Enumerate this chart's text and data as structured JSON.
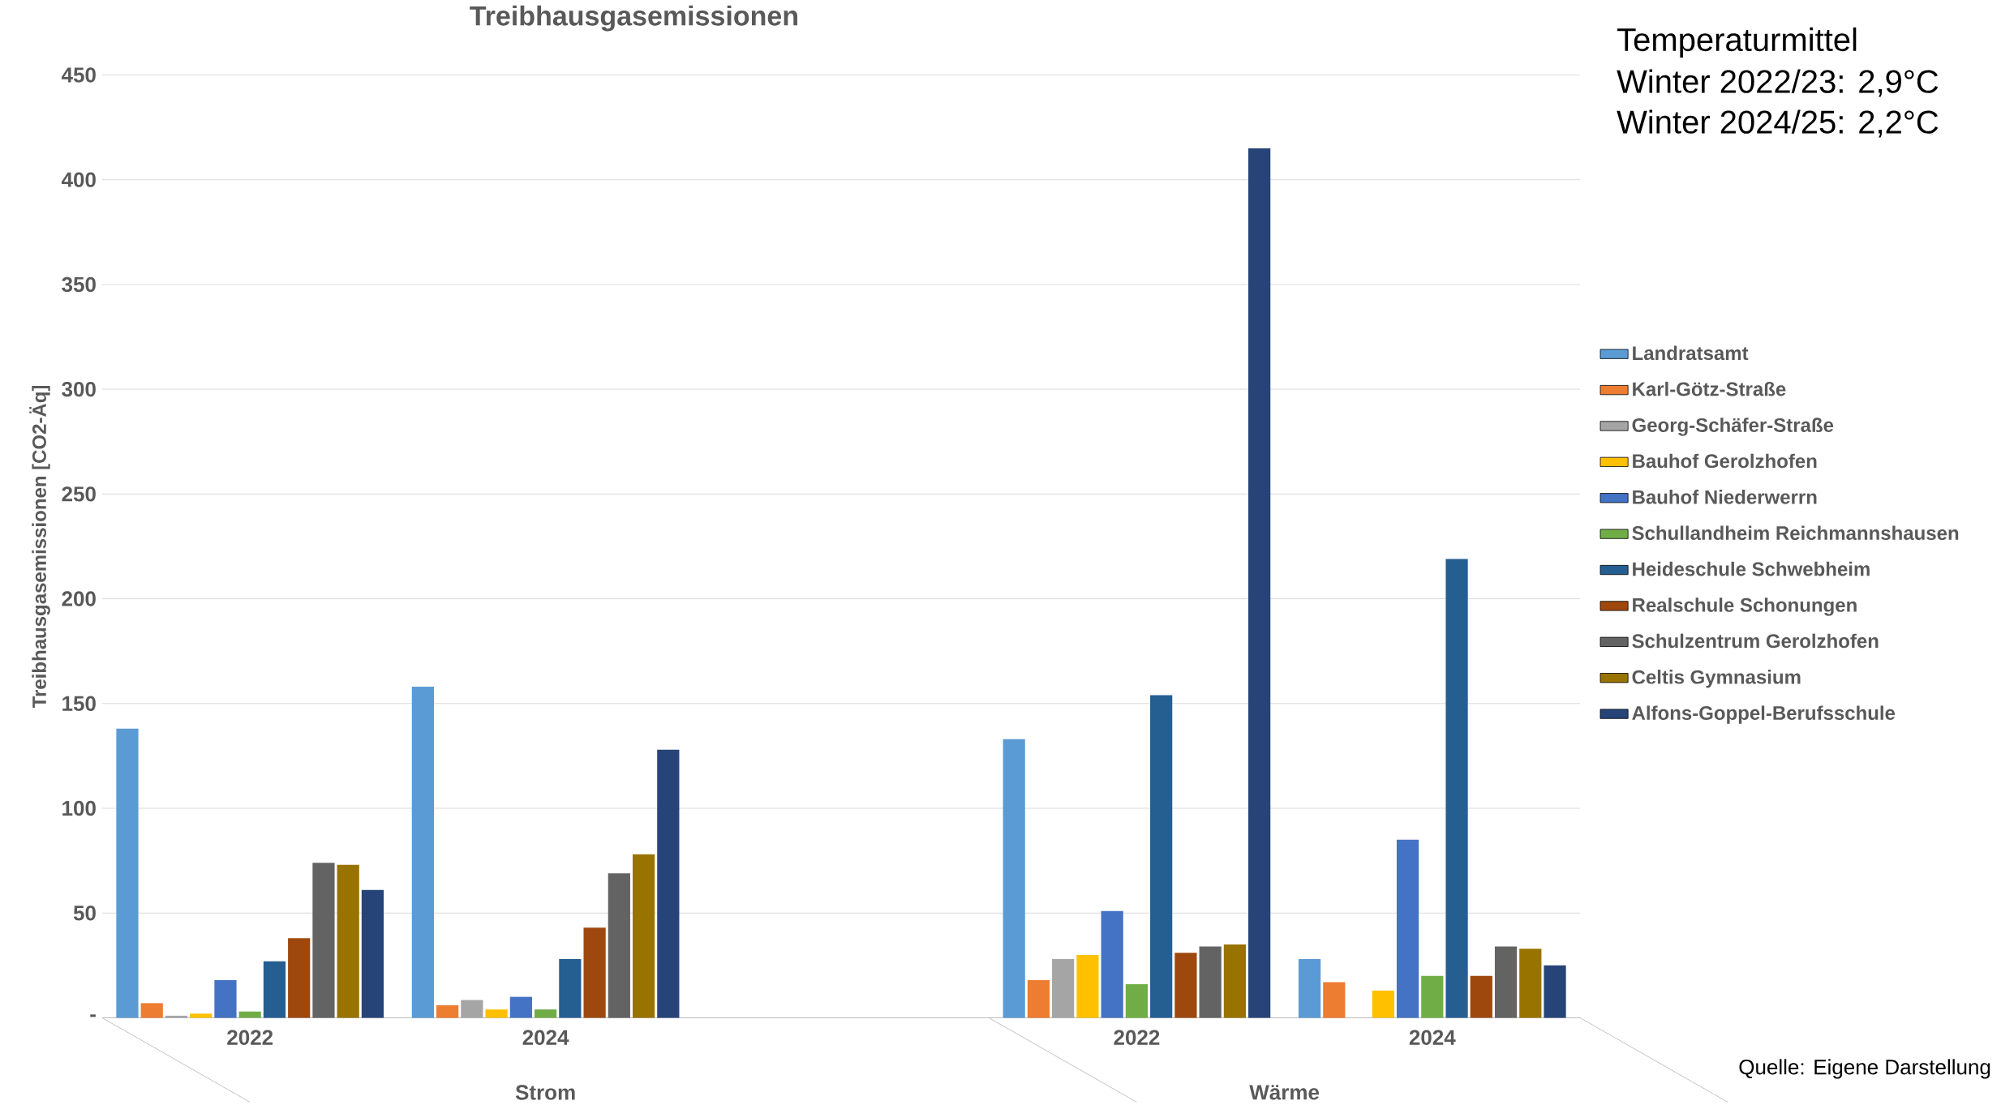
{
  "chart_data": {
    "type": "bar",
    "title": "Treibhausgasemissionen",
    "ylabel": "Treibhausgasemissionen [CO2-Äq]",
    "categories": [
      "2022",
      "2024",
      null,
      "2022",
      "2024"
    ],
    "series": [
      {
        "name": "Landratsamt",
        "color": "#5b9bd5",
        "values": [
          138,
          158,
          null,
          133,
          28
        ]
      },
      {
        "name": "Karl-Götz-Straße",
        "color": "#ed7d31",
        "values": [
          7,
          6,
          null,
          18,
          17
        ]
      },
      {
        "name": "Georg-Schäfer-Straße",
        "color": "#a5a5a5",
        "values": [
          1,
          8.5,
          null,
          28,
          null
        ]
      },
      {
        "name": "Bauhof Gerolzhofen",
        "color": "#ffc000",
        "values": [
          2,
          4,
          null,
          30,
          13
        ]
      },
      {
        "name": "Bauhof Niederwerrn",
        "color": "#4472c4",
        "values": [
          18,
          10,
          null,
          51,
          85
        ]
      },
      {
        "name": "Schullandheim Reichmannshausen",
        "color": "#70ad47",
        "values": [
          3,
          4,
          null,
          16,
          20
        ]
      },
      {
        "name": "Heideschule Schwebheim",
        "color": "#255e91",
        "values": [
          27,
          28,
          null,
          154,
          219
        ]
      },
      {
        "name": "Realschule Schonungen",
        "color": "#9e480e",
        "values": [
          38,
          43,
          null,
          31,
          20
        ]
      },
      {
        "name": "Schulzentrum Gerolzhofen",
        "color": "#636363",
        "values": [
          74,
          69,
          null,
          34,
          34
        ]
      },
      {
        "name": "Celtis Gymnasium",
        "color": "#997300",
        "values": [
          73,
          78,
          null,
          35,
          33
        ]
      },
      {
        "name": "Alfons-Goppel-Berufsschule",
        "color": "#264478",
        "values": [
          61,
          128,
          null,
          415,
          25
        ]
      }
    ],
    "ylim": [
      0,
      450
    ],
    "yticks": [
      {
        "value": 0,
        "label": "-"
      },
      50,
      100,
      150,
      200,
      250,
      300,
      350,
      400,
      450
    ],
    "grid": "y",
    "legend": "right",
    "annotations": [
      "Strom",
      "Wärme",
      "Temperaturmittel",
      "Winter 2022/23: 2,9°C",
      "Winter 2024/25: 2,2°C",
      "Quelle: Eigene Darstellung"
    ]
  }
}
